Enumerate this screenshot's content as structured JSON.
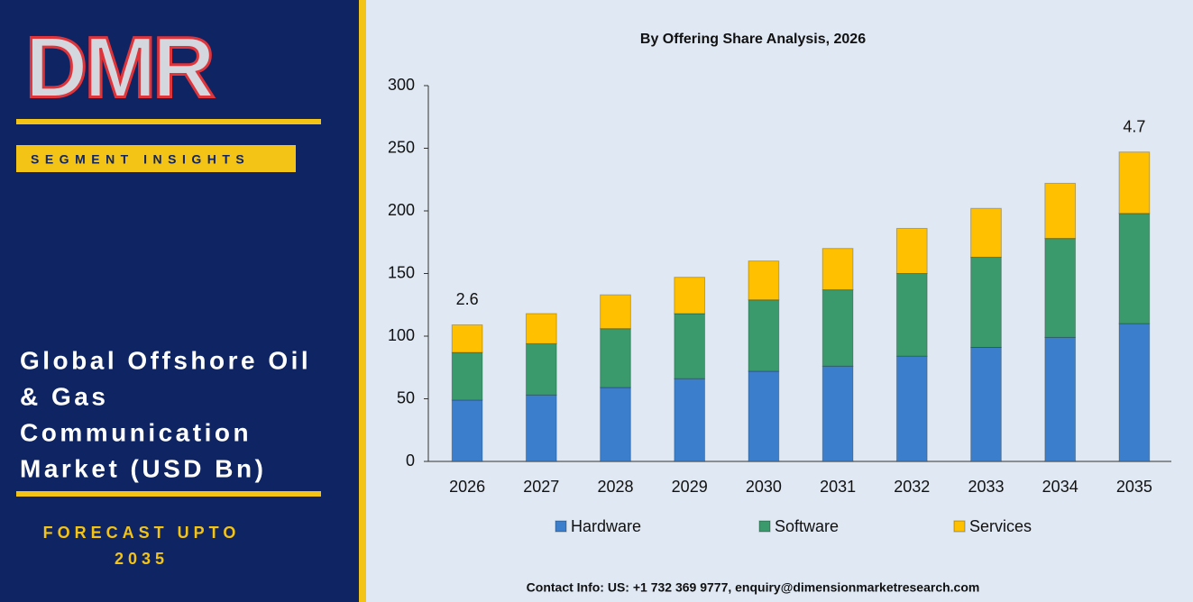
{
  "sidebar": {
    "logo": "DMR",
    "badge": "SEGMENT INSIGHTS",
    "title_lines": [
      "Global Offshore Oil",
      "& Gas",
      "Communication",
      "Market (USD Bn)"
    ],
    "forecast_lines": [
      "FORECAST UPTO",
      "2035"
    ]
  },
  "footer": {
    "contact": "Contact Info: US: +1 732 369 9777, enquiry@dimensionmarketresearch.com"
  },
  "chart_data": {
    "type": "stacked_bar",
    "title": "By Offering Share Analysis, 2026",
    "categories": [
      "2026",
      "2027",
      "2028",
      "2029",
      "2030",
      "2031",
      "2032",
      "2033",
      "2034",
      "2035"
    ],
    "series": [
      {
        "name": "Hardware",
        "color": "#3b7fcc",
        "values": [
          49,
          53,
          59,
          66,
          72,
          76,
          84,
          91,
          99,
          110
        ]
      },
      {
        "name": "Software",
        "color": "#3a9a6c",
        "values": [
          38,
          41,
          47,
          52,
          57,
          61,
          66,
          72,
          79,
          88
        ]
      },
      {
        "name": "Services",
        "color": "#ffc000",
        "values": [
          22,
          24,
          27,
          29,
          31,
          33,
          36,
          39,
          44,
          49
        ]
      }
    ],
    "annotations": [
      "2.6",
      "4.7"
    ],
    "ylim": [
      0,
      300
    ],
    "yticks": [
      0,
      50,
      100,
      150,
      200,
      250,
      300
    ],
    "legend": "bottom"
  }
}
